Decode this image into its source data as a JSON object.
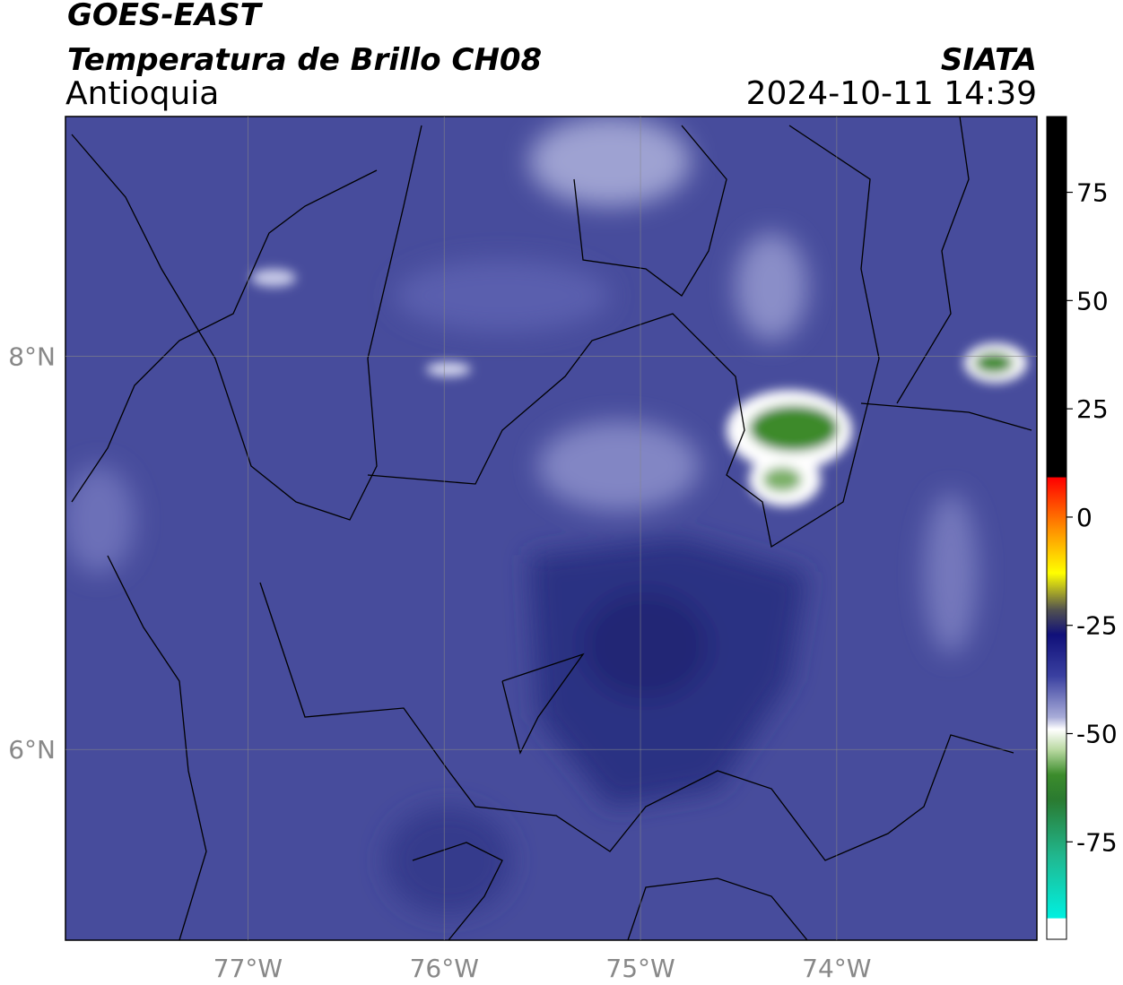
{
  "header": {
    "title": "GOES-EAST",
    "subtitle": "Temperatura de Brillo CH08",
    "region": "Antioquia",
    "source": "SIATA",
    "datetime": "2024-10-11 14:39"
  },
  "map": {
    "xlim": [
      -77.93,
      -72.98
    ],
    "ylim": [
      5.03,
      9.22
    ],
    "xticks": [
      {
        "value": -77,
        "label": "77°W"
      },
      {
        "value": -76,
        "label": "76°W"
      },
      {
        "value": -75,
        "label": "75°W"
      },
      {
        "value": -74,
        "label": "74°W"
      }
    ],
    "yticks": [
      {
        "value": 6,
        "label": "6°N"
      },
      {
        "value": 8,
        "label": "8°N"
      }
    ],
    "grid": true
  },
  "colorbar": {
    "lim": [
      -97.5,
      92.5
    ],
    "ticks": [
      -75,
      -50,
      -25,
      0,
      25,
      50,
      75
    ]
  }
}
